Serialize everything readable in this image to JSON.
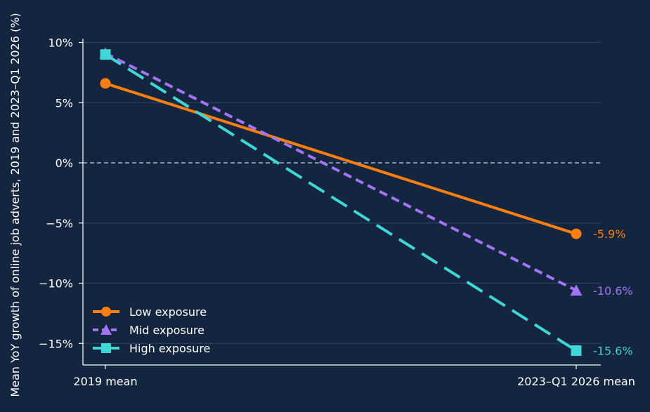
{
  "chart_data": {
    "type": "line",
    "ylabel": "Mean YoY growth of online job adverts, 2019 and 2023–Q1 2026 (%)",
    "x": [
      "2019 mean",
      "2023–Q1 2026 mean"
    ],
    "y_ticks": [
      10,
      5,
      0,
      -5,
      -10,
      -15
    ],
    "y_tick_labels": [
      "10%",
      "5%",
      "0%",
      "−5%",
      "−10%",
      "−15%"
    ],
    "ylim": [
      -16.8,
      10.5
    ],
    "zero_line": true,
    "legend_position": "bottom-left",
    "series": [
      {
        "name": "Low exposure",
        "values": [
          6.6,
          -5.9
        ],
        "end_label": "-5.9%",
        "color": "#ff7f0e",
        "marker": "circle",
        "dash": "solid"
      },
      {
        "name": "Mid exposure",
        "values": [
          9.1,
          -10.6
        ],
        "end_label": "-10.6%",
        "color": "#a374f5",
        "marker": "triangle",
        "dash": "dashed"
      },
      {
        "name": "High exposure",
        "values": [
          9.0,
          -15.6
        ],
        "end_label": "-15.6%",
        "color": "#3fd6d6",
        "marker": "square",
        "dash": "longdash"
      }
    ],
    "colors": {
      "background": "#13253f",
      "grid": "#2e4463",
      "axis": "#ffffff",
      "text": "#ffffff"
    }
  }
}
